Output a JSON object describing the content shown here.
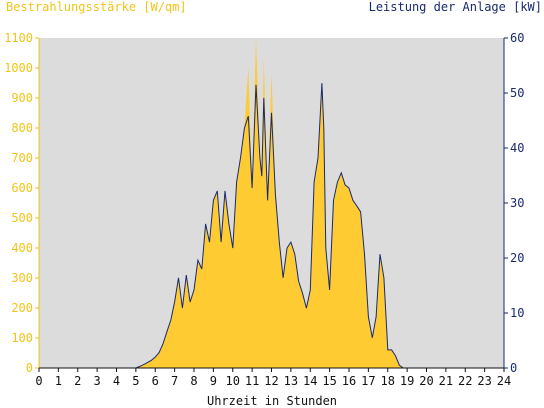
{
  "chart_data": {
    "type": "area",
    "left_axis_label": "Bestrahlungsstärke [W/qm]",
    "right_axis_label": "Leistung der Anlage [kW]",
    "xlabel": "Uhrzeit in Stunden",
    "x_ticks": [
      "0",
      "1",
      "2",
      "3",
      "4",
      "5",
      "6",
      "7",
      "8",
      "9",
      "10",
      "11",
      "12",
      "13",
      "14",
      "15",
      "16",
      "17",
      "18",
      "19",
      "20",
      "21",
      "22",
      "23",
      "24"
    ],
    "y_left_ticks": [
      "0",
      "100",
      "200",
      "300",
      "400",
      "500",
      "600",
      "700",
      "800",
      "900",
      "1000",
      "1100"
    ],
    "y_right_ticks": [
      "0",
      "10",
      "20",
      "30",
      "40",
      "50",
      "60"
    ],
    "xlim": [
      0,
      24
    ],
    "ylim_left": [
      0,
      1100
    ],
    "ylim_right": [
      0,
      60
    ],
    "grid": false,
    "colors": {
      "irradiance": "#fecb32",
      "power": "#1a2a6e",
      "plot_bg": "#dcdcdc",
      "left_axis": "#f2c419",
      "right_axis": "#1a2a6e"
    },
    "series": [
      {
        "axis": "left",
        "x": [
          5.0,
          5.2,
          5.5,
          5.8,
          6.0,
          6.2,
          6.4,
          6.6,
          6.8,
          7.0,
          7.2,
          7.4,
          7.6,
          7.8,
          8.0,
          8.2,
          8.4,
          8.6,
          8.8,
          9.0,
          9.2,
          9.4,
          9.6,
          9.8,
          10.0,
          10.2,
          10.4,
          10.6,
          10.8,
          11.0,
          11.2,
          11.4,
          11.5,
          11.6,
          11.8,
          12.0,
          12.2,
          12.4,
          12.6,
          12.8,
          13.0,
          13.2,
          13.4,
          13.6,
          13.8,
          14.0,
          14.2,
          14.4,
          14.6,
          14.7,
          14.8,
          15.0,
          15.2,
          15.4,
          15.6,
          15.8,
          16.0,
          16.2,
          16.4,
          16.6,
          16.8,
          17.0,
          17.2,
          17.4,
          17.6,
          17.8,
          18.0,
          18.2,
          18.4,
          18.6,
          18.8,
          19.0,
          19.2,
          19.4,
          19.6,
          20.0
        ],
        "y": [
          0,
          5,
          15,
          25,
          35,
          50,
          80,
          120,
          160,
          220,
          300,
          200,
          310,
          220,
          260,
          360,
          330,
          480,
          420,
          560,
          590,
          420,
          590,
          480,
          400,
          620,
          700,
          800,
          1000,
          600,
          1100,
          700,
          640,
          1030,
          560,
          980,
          580,
          420,
          300,
          400,
          420,
          380,
          290,
          250,
          200,
          260,
          620,
          700,
          950,
          800,
          400,
          260,
          560,
          620,
          650,
          610,
          600,
          560,
          540,
          520,
          380,
          170,
          100,
          170,
          380,
          300,
          60,
          60,
          40,
          10,
          0,
          0,
          0,
          0,
          0,
          0
        ]
      },
      {
        "axis": "right",
        "x": [
          5.0,
          5.2,
          5.5,
          5.8,
          6.0,
          6.2,
          6.4,
          6.6,
          6.8,
          7.0,
          7.2,
          7.4,
          7.6,
          7.8,
          8.0,
          8.2,
          8.4,
          8.6,
          8.8,
          9.0,
          9.2,
          9.4,
          9.6,
          9.8,
          10.0,
          10.2,
          10.4,
          10.6,
          10.8,
          11.0,
          11.2,
          11.4,
          11.5,
          11.6,
          11.8,
          12.0,
          12.2,
          12.4,
          12.6,
          12.8,
          13.0,
          13.2,
          13.4,
          13.6,
          13.8,
          14.0,
          14.2,
          14.4,
          14.6,
          14.7,
          14.8,
          15.0,
          15.2,
          15.4,
          15.6,
          15.8,
          16.0,
          16.2,
          16.4,
          16.6,
          16.8,
          17.0,
          17.2,
          17.4,
          17.6,
          17.8,
          18.0,
          18.2,
          18.4,
          18.6,
          18.8,
          19.0,
          19.2,
          19.4,
          19.6,
          20.0
        ],
        "y": [
          0,
          0.3,
          0.8,
          1.4,
          2.0,
          2.8,
          4.4,
          6.6,
          8.7,
          12.0,
          16.4,
          10.9,
          16.9,
          12.0,
          14.2,
          19.6,
          18.0,
          26.2,
          22.9,
          30.5,
          32.2,
          22.9,
          32.2,
          26.2,
          21.8,
          33.8,
          38.2,
          43.6,
          45.8,
          32.7,
          51.5,
          38.2,
          34.9,
          49.1,
          30.5,
          46.4,
          31.6,
          22.9,
          16.4,
          21.8,
          22.9,
          20.7,
          15.8,
          13.6,
          10.9,
          14.2,
          33.8,
          38.2,
          51.8,
          43.6,
          21.8,
          14.2,
          30.5,
          33.8,
          35.5,
          33.3,
          32.7,
          30.5,
          29.5,
          28.4,
          20.7,
          9.3,
          5.5,
          9.3,
          20.7,
          16.4,
          3.3,
          3.3,
          2.2,
          0.5,
          0,
          0,
          0,
          0,
          0,
          0
        ]
      }
    ]
  }
}
